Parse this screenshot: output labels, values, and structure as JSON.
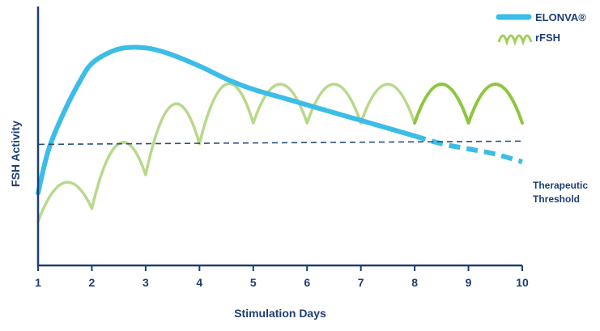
{
  "chart_data": {
    "type": "line",
    "title": "",
    "xlabel": "Stimulation Days",
    "ylabel": "FSH Activity",
    "xlim": [
      1,
      10
    ],
    "x_ticks": [
      "1",
      "2",
      "3",
      "4",
      "5",
      "6",
      "7",
      "8",
      "9",
      "10"
    ],
    "y_ticks": [],
    "grid": false,
    "legend_position": "top-right",
    "series": [
      {
        "name": "ELONVA®",
        "color": "#3bbde8",
        "style": "solid then dashed after day 8",
        "x": [
          1.0,
          1.2,
          1.5,
          1.8,
          2.0,
          2.3,
          2.6,
          3.0,
          3.4,
          4.0,
          4.5,
          5.0,
          5.5,
          6.0,
          6.5,
          7.0,
          7.5,
          8.0,
          8.5,
          9.0,
          9.5,
          10.0
        ],
        "y": [
          0.28,
          0.45,
          0.6,
          0.72,
          0.78,
          0.82,
          0.84,
          0.84,
          0.82,
          0.77,
          0.72,
          0.68,
          0.65,
          0.62,
          0.59,
          0.56,
          0.53,
          0.5,
          0.47,
          0.45,
          0.43,
          0.4
        ]
      },
      {
        "name": "rFSH",
        "color": "#9fd05a",
        "style": "daily-dose arches",
        "x": [
          1.0,
          1.5,
          2.0,
          2.5,
          3.0,
          3.5,
          4.0,
          4.5,
          5.0,
          5.5,
          6.0,
          6.5,
          7.0,
          7.5,
          8.0,
          8.5,
          9.0,
          9.5,
          10.0
        ],
        "y": [
          0.17,
          0.32,
          0.22,
          0.47,
          0.35,
          0.62,
          0.47,
          0.7,
          0.55,
          0.7,
          0.55,
          0.7,
          0.55,
          0.7,
          0.55,
          0.7,
          0.55,
          0.7,
          0.55
        ]
      }
    ],
    "threshold": {
      "label_line1": "Therapeutic",
      "label_line2": "Threshold",
      "y": 0.48
    }
  },
  "legend": {
    "items": [
      {
        "label": "ELONVA®",
        "color": "#3bbde8"
      },
      {
        "label": "rFSH",
        "color": "#9fd05a"
      }
    ]
  },
  "colors": {
    "axis": "#1d3f73",
    "elonva": "#3bbde8",
    "rfsh_light": "#b7d98a",
    "rfsh_bright": "#8cc63f",
    "threshold": "#2a4d7c"
  }
}
